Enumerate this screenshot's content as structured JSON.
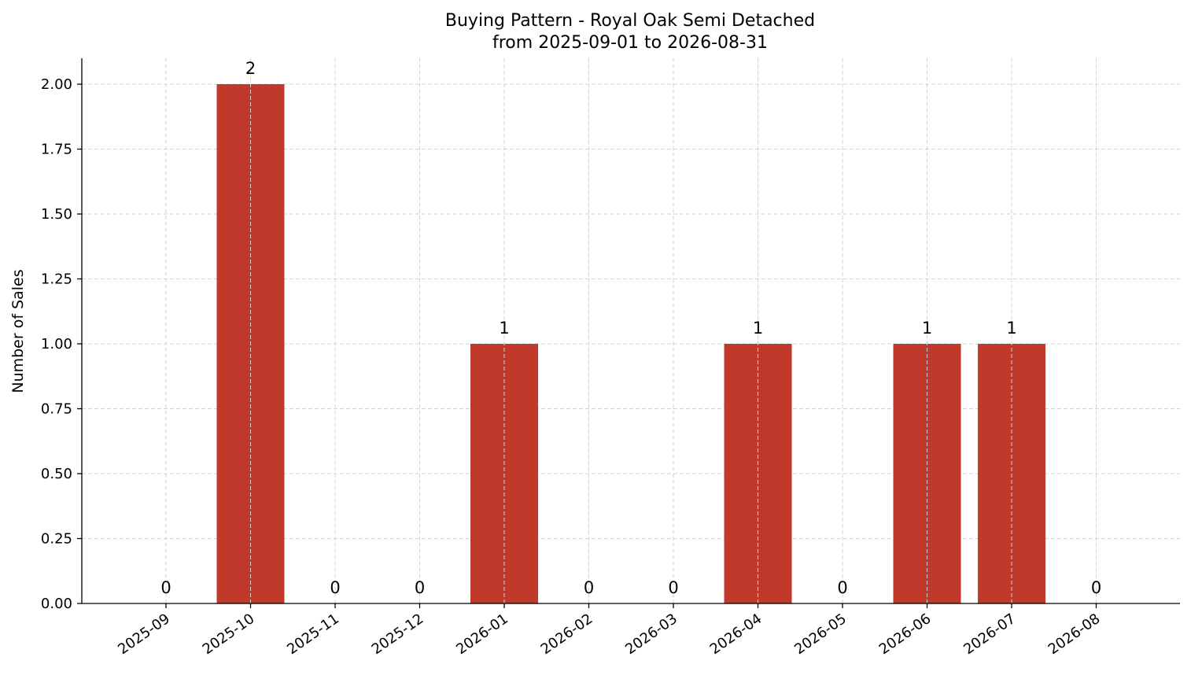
{
  "chart_data": {
    "type": "bar",
    "title": "Buying Pattern - Royal Oak Semi Detached",
    "subtitle": "from 2025-09-01 to 2026-08-31",
    "xlabel": "",
    "ylabel": "Number of Sales",
    "categories": [
      "2025-09",
      "2025-10",
      "2025-11",
      "2025-12",
      "2026-01",
      "2026-02",
      "2026-03",
      "2026-04",
      "2026-05",
      "2026-06",
      "2026-07",
      "2026-08"
    ],
    "values": [
      0,
      2,
      0,
      0,
      1,
      0,
      0,
      1,
      0,
      1,
      1,
      0
    ],
    "data_labels": [
      "0",
      "2",
      "0",
      "0",
      "1",
      "0",
      "0",
      "1",
      "0",
      "1",
      "1",
      "0"
    ],
    "ylim": [
      0,
      2.1
    ],
    "yticks": [
      0,
      0.25,
      0.5,
      0.75,
      1.0,
      1.25,
      1.5,
      1.75,
      2.0
    ],
    "ytick_labels": [
      "0.00",
      "0.25",
      "0.50",
      "0.75",
      "1.00",
      "1.25",
      "1.50",
      "1.75",
      "2.00"
    ],
    "grid": true,
    "bar_color": "#c0392b",
    "grid_color": "#d3d3d3"
  }
}
